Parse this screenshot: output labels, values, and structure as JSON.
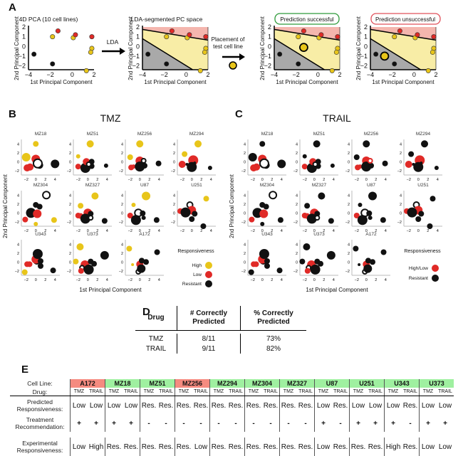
{
  "figure": {
    "panel_letters": {
      "A": "A",
      "B": "B",
      "C": "C",
      "D": "D",
      "E": "E"
    },
    "colors": {
      "high": "#e8c51a",
      "low": "#e02a27",
      "resistant": "#111111",
      "region_red": "#f4b6ae",
      "region_yellow": "#f8eda6",
      "region_gray": "#a9a9a9",
      "success_border": "#2e9a3a",
      "fail_border": "#e0505a",
      "green_cell": "#9ff0a0",
      "red_cell": "#f58b80"
    }
  },
  "panelA": {
    "plot1_title": "4D PCA (10 cell lines)",
    "plot2_title": "LDA-segmented PC space",
    "plot3_title": "Prediction successful",
    "plot4_title": "Prediction unsuccessful",
    "arrow1_label": "LDA",
    "arrow2_label_line1": "Placement of",
    "arrow2_label_line2": "test cell line",
    "xlabel": "1st Principal Component",
    "ylabel": "2nd Principal Component",
    "xticks": [
      "−4",
      "−2",
      "0",
      "2"
    ],
    "yticks": [
      "2",
      "1",
      "0",
      "−1",
      "−2"
    ]
  },
  "chart_data": [
    {
      "type": "scatter",
      "title": "4D PCA (10 cell lines)",
      "xlabel": "1st Principal Component",
      "ylabel": "2nd Principal Component",
      "xlim": [
        -4,
        2
      ],
      "ylim": [
        -2.4,
        2
      ],
      "points": [
        {
          "x": -3.5,
          "y": -0.8,
          "class": "resistant"
        },
        {
          "x": -1.8,
          "y": -1.8,
          "class": "resistant"
        },
        {
          "x": -1.8,
          "y": 1.0,
          "class": "high"
        },
        {
          "x": -1.3,
          "y": 1.6,
          "class": "low"
        },
        {
          "x": 0.1,
          "y": 0.9,
          "class": "high"
        },
        {
          "x": 0.3,
          "y": 1.2,
          "class": "low"
        },
        {
          "x": 1.8,
          "y": 1.0,
          "class": "low"
        },
        {
          "x": 1.8,
          "y": -0.2,
          "class": "high"
        },
        {
          "x": 1.7,
          "y": -0.6,
          "class": "high"
        },
        {
          "x": 1.3,
          "y": -2.5,
          "class": "high"
        }
      ]
    },
    {
      "type": "scatter",
      "title": "TMZ",
      "xlabel": "1st Principal Component",
      "ylabel": "2nd Principal Component",
      "legend_title": "Responsiveness",
      "legend": [
        "High",
        "Low",
        "Resistant"
      ],
      "subplots": [
        "MZ18",
        "MZ51",
        "MZ256",
        "MZ294",
        "MZ304",
        "MZ327",
        "U87",
        "U251",
        "U343",
        "U373",
        "A172"
      ]
    },
    {
      "type": "scatter",
      "title": "TRAIL",
      "xlabel": "1st Principal Component",
      "ylabel": "2nd Principal Component",
      "legend_title": "Responsiveness",
      "legend": [
        "High/Low",
        "Resistant"
      ],
      "subplots": [
        "MZ18",
        "MZ51",
        "MZ256",
        "MZ294",
        "MZ304",
        "MZ327",
        "U87",
        "U251",
        "U343",
        "U373",
        "A172"
      ]
    }
  ],
  "panelB": {
    "title": "TMZ",
    "legend_title": "Responsiveness",
    "legend": [
      {
        "label": "High",
        "cls": "high"
      },
      {
        "label": "Low",
        "cls": "low"
      },
      {
        "label": "Resistant",
        "cls": "resistant"
      }
    ],
    "subplots": [
      "MZ18",
      "MZ51",
      "MZ256",
      "MZ294",
      "MZ304",
      "MZ327",
      "U87",
      "U251",
      "U343",
      "U373",
      "A172"
    ]
  },
  "panelC": {
    "title": "TRAIL",
    "legend_title": "Responsiveness",
    "legend": [
      {
        "label": "High/Low",
        "cls": "low"
      },
      {
        "label": "Resistant",
        "cls": "resistant"
      }
    ],
    "subplots": [
      "MZ18",
      "MZ51",
      "MZ256",
      "MZ294",
      "MZ304",
      "MZ327",
      "U87",
      "U251",
      "U343",
      "U373",
      "A172"
    ]
  },
  "shared_axes": {
    "xlabel": "1st Principal Component",
    "ylabel": "2nd Principal Component",
    "xticks": [
      "−2",
      "0",
      "2",
      "4"
    ]
  },
  "panelD": {
    "headers": [
      "Drug",
      "# Correctly Predicted",
      "% Correctly Predicted"
    ],
    "rows": [
      {
        "drug": "TMZ",
        "count": "8/11",
        "percent": "73%"
      },
      {
        "drug": "TRAIL",
        "count": "9/11",
        "percent": "82%"
      }
    ]
  },
  "panelE": {
    "row_labels": {
      "cell_line": "Cell Line:",
      "drug": "Drug:",
      "predicted": "Predicted Responsiveness:",
      "recommendation": "Treatment Recommendation:",
      "experimental": "Experimental Responsiveness:"
    },
    "cell_lines": [
      {
        "name": "A172",
        "status": "red",
        "tmz": {
          "pred": "Low",
          "rec": "+",
          "exp": "Low"
        },
        "trail": {
          "pred": "Low",
          "rec": "+",
          "exp": "High"
        }
      },
      {
        "name": "MZ18",
        "status": "green",
        "tmz": {
          "pred": "Low",
          "rec": "+",
          "exp": "Res."
        },
        "trail": {
          "pred": "Low",
          "rec": "+",
          "exp": "Res."
        }
      },
      {
        "name": "MZ51",
        "status": "green",
        "tmz": {
          "pred": "Res.",
          "rec": "-",
          "exp": "Res."
        },
        "trail": {
          "pred": "Res.",
          "rec": "-",
          "exp": "Res."
        }
      },
      {
        "name": "MZ256",
        "status": "red",
        "tmz": {
          "pred": "Res.",
          "rec": "-",
          "exp": "Res."
        },
        "trail": {
          "pred": "Res.",
          "rec": "-",
          "exp": "Low"
        }
      },
      {
        "name": "MZ294",
        "status": "green",
        "tmz": {
          "pred": "Res.",
          "rec": "-",
          "exp": "Res."
        },
        "trail": {
          "pred": "Res.",
          "rec": "-",
          "exp": "Res."
        }
      },
      {
        "name": "MZ304",
        "status": "green",
        "tmz": {
          "pred": "Res.",
          "rec": "-",
          "exp": "Res."
        },
        "trail": {
          "pred": "Res.",
          "rec": "-",
          "exp": "Res."
        }
      },
      {
        "name": "MZ327",
        "status": "green",
        "tmz": {
          "pred": "Res.",
          "rec": "-",
          "exp": "Res."
        },
        "trail": {
          "pred": "Res.",
          "rec": "-",
          "exp": "Res."
        }
      },
      {
        "name": "U87",
        "status": "green",
        "tmz": {
          "pred": "Low",
          "rec": "+",
          "exp": "Low"
        },
        "trail": {
          "pred": "Res.",
          "rec": "-",
          "exp": "Res."
        }
      },
      {
        "name": "U251",
        "status": "green",
        "tmz": {
          "pred": "Low",
          "rec": "+",
          "exp": "Res."
        },
        "trail": {
          "pred": "Low",
          "rec": "+",
          "exp": "Res."
        }
      },
      {
        "name": "U343",
        "status": "green",
        "tmz": {
          "pred": "Low",
          "rec": "+",
          "exp": "High"
        },
        "trail": {
          "pred": "Res.",
          "rec": "-",
          "exp": "Res."
        }
      },
      {
        "name": "U373",
        "status": "green",
        "tmz": {
          "pred": "Low",
          "rec": "+",
          "exp": "Low"
        },
        "trail": {
          "pred": "Low",
          "rec": "+",
          "exp": "Low"
        }
      }
    ],
    "drug_labels": {
      "tmz": "TMZ",
      "trail": "TRAIL"
    }
  }
}
